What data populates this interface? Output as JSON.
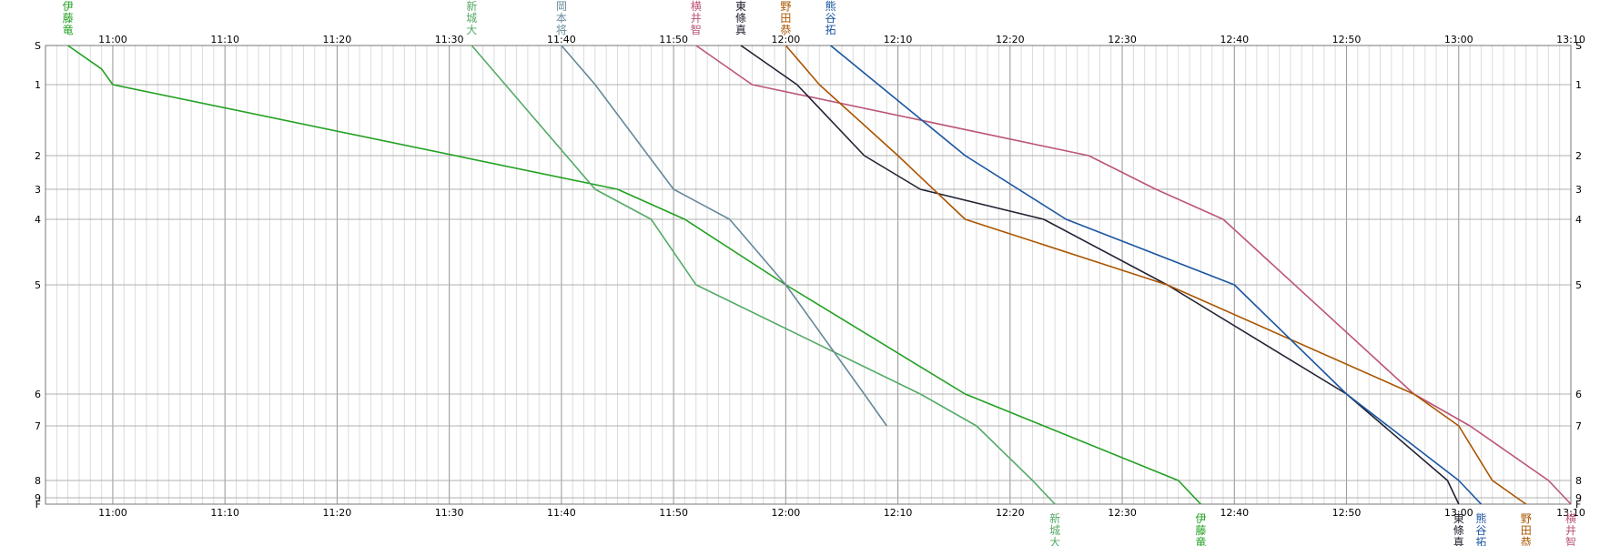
{
  "chart_data": {
    "type": "line",
    "title": "",
    "xlabel": "",
    "ylabel": "",
    "x_unit": "time",
    "xlim": [
      "10:54",
      "13:10"
    ],
    "x_ticks": [
      "11:00",
      "11:10",
      "11:20",
      "11:30",
      "11:40",
      "11:50",
      "12:00",
      "12:10",
      "12:20",
      "12:30",
      "12:40",
      "12:50",
      "13:00",
      "13:10"
    ],
    "y_labels": [
      "S",
      "1",
      "2",
      "3",
      "4",
      "5",
      "6",
      "7",
      "8",
      "9",
      "F"
    ],
    "y_direction": "down",
    "grid": true,
    "series": [
      {
        "name": "伊藤竜",
        "color": "#22a022",
        "top_label": [
          "伊",
          "藤",
          "竜"
        ],
        "bottom_label": [
          "伊",
          "藤",
          "竜"
        ],
        "points": [
          [
            "10:56",
            "S"
          ],
          [
            "10:59",
            "0.6"
          ],
          [
            "11:00",
            "1"
          ],
          [
            "11:45",
            "3"
          ],
          [
            "11:51",
            "4"
          ],
          [
            "12:00",
            "5"
          ],
          [
            "12:16",
            "6"
          ],
          [
            "12:23",
            "7"
          ],
          [
            "12:35",
            "8"
          ],
          [
            "12:37",
            "F"
          ]
        ]
      },
      {
        "name": "新城大",
        "color": "#55aa66",
        "top_label": [
          "新",
          "城",
          "大"
        ],
        "bottom_label": [
          "新",
          "城",
          "大"
        ],
        "points": [
          [
            "11:32",
            "S"
          ],
          [
            "11:43",
            "3"
          ],
          [
            "11:48",
            "4"
          ],
          [
            "11:52",
            "5"
          ],
          [
            "12:12",
            "6"
          ],
          [
            "12:17",
            "7"
          ],
          [
            "12:22",
            "8"
          ],
          [
            "12:24",
            "F"
          ]
        ]
      },
      {
        "name": "岡本将",
        "color": "#668899",
        "top_label": [
          "岡",
          "本",
          "将"
        ],
        "points": [
          [
            "11:40",
            "S"
          ],
          [
            "11:43",
            "1"
          ],
          [
            "11:50",
            "3"
          ],
          [
            "11:55",
            "4"
          ],
          [
            "12:00",
            "5"
          ],
          [
            "12:07",
            "6"
          ],
          [
            "12:09",
            "7"
          ]
        ]
      },
      {
        "name": "横井智",
        "color": "#bb5577",
        "top_label": [
          "横",
          "井",
          "智"
        ],
        "bottom_label": [
          "横",
          "井",
          "智"
        ],
        "points": [
          [
            "11:52",
            "S"
          ],
          [
            "11:57",
            "1"
          ],
          [
            "12:27",
            "2"
          ],
          [
            "12:33",
            "3"
          ],
          [
            "12:39",
            "4"
          ],
          [
            "12:56",
            "6"
          ],
          [
            "13:01",
            "7"
          ],
          [
            "13:08",
            "8"
          ],
          [
            "13:10",
            "F"
          ]
        ]
      },
      {
        "name": "東條真",
        "color": "#222233",
        "top_label": [
          "東",
          "條",
          "真"
        ],
        "bottom_label": [
          "東",
          "條",
          "真"
        ],
        "points": [
          [
            "11:56",
            "S"
          ],
          [
            "12:01",
            "1"
          ],
          [
            "12:07",
            "2"
          ],
          [
            "12:12",
            "3"
          ],
          [
            "12:23",
            "4"
          ],
          [
            "12:34",
            "5"
          ],
          [
            "12:50",
            "6"
          ],
          [
            "12:59",
            "8"
          ],
          [
            "13:00",
            "F"
          ]
        ]
      },
      {
        "name": "野田恭",
        "color": "#aa5500",
        "top_label": [
          "野",
          "田",
          "恭"
        ],
        "bottom_label": [
          "野",
          "田",
          "恭"
        ],
        "points": [
          [
            "12:00",
            "S"
          ],
          [
            "12:03",
            "1"
          ],
          [
            "12:10",
            "2"
          ],
          [
            "12:16",
            "4"
          ],
          [
            "12:34",
            "5"
          ],
          [
            "12:56",
            "6"
          ],
          [
            "13:00",
            "7"
          ],
          [
            "13:03",
            "8"
          ],
          [
            "13:06",
            "F"
          ]
        ]
      },
      {
        "name": "熊谷拓",
        "color": "#1a55a0",
        "top_label": [
          "熊",
          "谷",
          "拓"
        ],
        "bottom_label": [
          "熊",
          "谷",
          "拓"
        ],
        "points": [
          [
            "12:04",
            "S"
          ],
          [
            "12:16",
            "2"
          ],
          [
            "12:25",
            "4"
          ],
          [
            "12:40",
            "5"
          ],
          [
            "12:50",
            "6"
          ],
          [
            "13:00",
            "8"
          ],
          [
            "13:02",
            "F"
          ]
        ]
      }
    ]
  }
}
